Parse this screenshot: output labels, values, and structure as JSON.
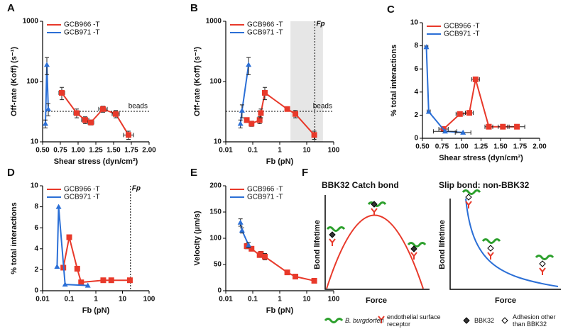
{
  "chart_data": [
    {
      "type": "line",
      "panel": "A",
      "xlabel": "Shear stress (dyn/cm²)",
      "ylabel": "Off-rate (Koff) (s⁻¹)",
      "yscale": "log",
      "legend": "upper left",
      "xlim": [
        0.5,
        2.0
      ],
      "xticks": [
        {
          "value": 0.5,
          "label": "0.50"
        },
        {
          "value": 0.75,
          "label": "0.75"
        },
        {
          "value": 1.0,
          "label": "1.00"
        },
        {
          "value": 1.25,
          "label": "1.25"
        },
        {
          "value": 1.5,
          "label": "1.50"
        },
        {
          "value": 1.75,
          "label": "1.75"
        },
        {
          "value": 2.0,
          "label": "2.00"
        }
      ],
      "ylim": [
        10,
        1000
      ],
      "yticks": [
        10,
        100,
        1000
      ],
      "hline": {
        "value": 32,
        "label": "beads"
      },
      "series": [
        {
          "name": "GCB966 -T",
          "color": "#e8392a",
          "marker": "square",
          "x": [
            0.77,
            0.98,
            1.1,
            1.18,
            1.35,
            1.53,
            1.71
          ],
          "values": [
            65,
            30,
            23,
            21,
            35,
            29,
            13
          ],
          "yerr": [
            15,
            5,
            3,
            2,
            4,
            4,
            2
          ],
          "xerr": [
            0.04,
            0.04,
            0.05,
            0.04,
            0.06,
            0.05,
            0.07
          ]
        },
        {
          "name": "GCB971 -T",
          "color": "#2b6fd6",
          "marker": "triangle",
          "x": [
            0.54,
            0.56,
            0.58
          ],
          "values": [
            20,
            190,
            35
          ],
          "yerr": [
            3,
            60,
            8
          ]
        }
      ]
    },
    {
      "type": "line",
      "panel": "B",
      "xlabel": "Fb (pN)",
      "ylabel": "Off-rate (Koff) (s⁻¹)",
      "xscale": "log",
      "yscale": "log",
      "legend": "upper left",
      "xlim": [
        0.01,
        100
      ],
      "xticks": [
        0.01,
        0.1,
        1,
        10,
        100
      ],
      "ylim": [
        10,
        1000
      ],
      "yticks": [
        10,
        100,
        1000
      ],
      "hline": {
        "value": 32,
        "label": "beads"
      },
      "vline": {
        "value": 20,
        "label": "Fp"
      },
      "shaded_range": [
        2.5,
        40
      ],
      "series": [
        {
          "name": "GCB966 -T",
          "color": "#e8392a",
          "marker": "square",
          "x": [
            0.06,
            0.09,
            0.18,
            0.2,
            0.28,
            1.9,
            3.8,
            19
          ],
          "values": [
            23,
            20,
            23,
            30,
            65,
            35,
            29,
            13
          ],
          "yerr": [
            2,
            2,
            3,
            5,
            15,
            3,
            4,
            2
          ]
        },
        {
          "name": "GCB971 -T",
          "color": "#2b6fd6",
          "marker": "triangle",
          "x": [
            0.035,
            0.04,
            0.07
          ],
          "values": [
            20,
            33,
            190
          ],
          "yerr": [
            3,
            8,
            60
          ]
        }
      ]
    },
    {
      "type": "line",
      "panel": "C",
      "xlabel": "Shear stress (dyn/cm²)",
      "ylabel": "% total interactions",
      "legend": "upper left",
      "xlim": [
        0.5,
        2.0
      ],
      "xticks": [
        {
          "value": 0.5,
          "label": "0.50"
        },
        {
          "value": 0.75,
          "label": "0.75"
        },
        {
          "value": 1.0,
          "label": "1.00"
        },
        {
          "value": 1.25,
          "label": "1.25"
        },
        {
          "value": 1.5,
          "label": "1.50"
        },
        {
          "value": 1.75,
          "label": "1.75"
        },
        {
          "value": 2.0,
          "label": "2.00"
        }
      ],
      "ylim": [
        0,
        10
      ],
      "yticks": [
        0,
        2,
        4,
        6,
        8,
        10
      ],
      "series": [
        {
          "name": "GCB966 -T",
          "color": "#e8392a",
          "marker": "square",
          "x": [
            0.77,
            0.98,
            1.1,
            1.18,
            1.35,
            1.53,
            1.71
          ],
          "values": [
            0.8,
            2.1,
            2.2,
            5.1,
            1.0,
            1.0,
            1.0
          ],
          "xerr": [
            0.06,
            0.05,
            0.05,
            0.05,
            0.05,
            0.06,
            0.1
          ]
        },
        {
          "name": "GCB971 -T",
          "color": "#2b6fd6",
          "marker": "triangle",
          "x": [
            0.55,
            0.58,
            0.79,
            1.02
          ],
          "values": [
            7.9,
            2.3,
            0.6,
            0.5
          ],
          "xerr": [
            0.02,
            0.02,
            0.15,
            0.1
          ]
        }
      ]
    },
    {
      "type": "line",
      "panel": "D",
      "xlabel": "Fb (pN)",
      "ylabel": "% total interactions",
      "xscale": "log",
      "legend": "upper left",
      "xlim": [
        0.01,
        100
      ],
      "xticks": [
        0.01,
        0.1,
        1,
        10,
        100
      ],
      "ylim": [
        0,
        10
      ],
      "yticks": [
        0,
        2,
        4,
        6,
        8,
        10
      ],
      "vline": {
        "value": 20,
        "label": "Fp"
      },
      "series": [
        {
          "name": "GCB966 -T",
          "color": "#e8392a",
          "marker": "square",
          "x": [
            0.06,
            0.1,
            0.2,
            0.28,
            1.9,
            3.8,
            19
          ],
          "values": [
            2.2,
            5.1,
            2.1,
            0.8,
            1.0,
            1.0,
            1.0
          ]
        },
        {
          "name": "GCB971 -T",
          "color": "#2b6fd6",
          "marker": "triangle",
          "x": [
            0.035,
            0.04,
            0.07,
            0.5
          ],
          "values": [
            2.3,
            8,
            0.6,
            0.5
          ]
        }
      ]
    },
    {
      "type": "line",
      "panel": "E",
      "xlabel": "Fb (pN)",
      "ylabel": "Velocity (µm/s)",
      "xscale": "log",
      "legend": "upper left",
      "xlim": [
        0.01,
        100
      ],
      "xticks": [
        0.01,
        0.1,
        1,
        10,
        100
      ],
      "ylim": [
        0,
        200
      ],
      "yticks": [
        0,
        50,
        100,
        150,
        200
      ],
      "series": [
        {
          "name": "GCB966 -T",
          "color": "#e8392a",
          "marker": "square",
          "x": [
            0.06,
            0.09,
            0.18,
            0.2,
            0.28,
            1.9,
            3.8,
            19
          ],
          "values": [
            85,
            80,
            68,
            70,
            65,
            35,
            27,
            19
          ],
          "yerr": [
            5,
            4,
            4,
            5,
            6,
            3,
            2,
            2
          ]
        },
        {
          "name": "GCB971 -T",
          "color": "#2b6fd6",
          "marker": "triangle",
          "x": [
            0.035,
            0.04,
            0.07
          ],
          "values": [
            130,
            115,
            87
          ],
          "yerr": [
            7,
            5,
            5
          ]
        }
      ]
    }
  ],
  "diagram": {
    "panel": "F",
    "left": {
      "title": "BBK32 Catch bond",
      "ylabel": "Bond lifetime",
      "xlabel": "Force"
    },
    "right": {
      "title": "Slip bond: non-BBK32",
      "ylabel": "Bond lifetime",
      "xlabel": "Force"
    },
    "legend": [
      "B. burgdorferi",
      "endothelial surface receptor",
      "BBK32",
      "Adhesion other than BBK32"
    ]
  }
}
